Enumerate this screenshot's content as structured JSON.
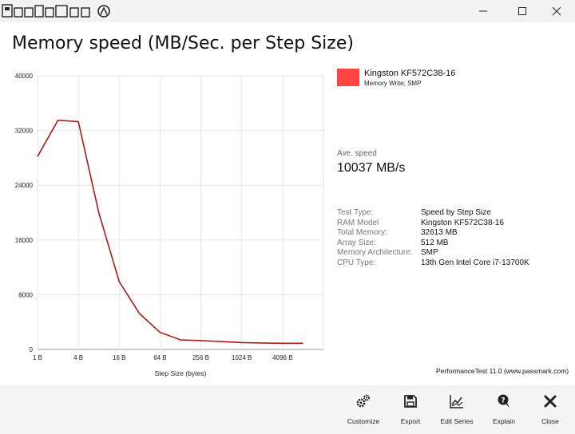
{
  "window": {
    "app_logo_icon": "passmark-logo-icon",
    "minimize_icon": "minimize-icon",
    "maximize_icon": "maximize-icon",
    "close_icon": "close-icon"
  },
  "page": {
    "title": "Memory speed (MB/Sec. per Step Size)"
  },
  "legend": {
    "color": "#ff4444",
    "name": "Kingston KF572C38-16",
    "subtitle": "Memory Write; SMP"
  },
  "summary": {
    "ave_label": "Ave. speed",
    "ave_value": "10037 MB/s"
  },
  "info": [
    {
      "key": "Test Type:",
      "value": "Speed by Step Size"
    },
    {
      "key": "RAM Model",
      "value": "Kingston KF572C38-16"
    },
    {
      "key": "Total Memory:",
      "value": "32613 MB"
    },
    {
      "key": "Array Size:",
      "value": "512 MB"
    },
    {
      "key": "Memory Architecture:",
      "value": "SMP"
    },
    {
      "key": "CPU Type:",
      "value": "13th Gen Intel Core i7-13700K"
    }
  ],
  "credit": "PerformanceTest 11.0 (www.passmark.com)",
  "toolbar": {
    "customize": "Customize",
    "export": "Export",
    "edit_series": "Edit Series",
    "explain": "Explain",
    "close": "Close"
  },
  "chart_data": {
    "type": "line",
    "title": "",
    "xlabel": "Step Size (bytes)",
    "ylabel": "",
    "x_scale": "log2",
    "x_ticks": [
      "1 B",
      "4 B",
      "16 B",
      "64 B",
      "256 B",
      "1024 B",
      "4096 B"
    ],
    "x_tick_values": [
      1,
      4,
      16,
      64,
      256,
      1024,
      4096
    ],
    "xlim": [
      1,
      16384
    ],
    "y_ticks": [
      0,
      8000,
      16000,
      24000,
      32000,
      40000
    ],
    "ylim": [
      0,
      40000
    ],
    "grid": true,
    "line_color": "#b01818",
    "series": [
      {
        "name": "Kingston KF572C38-16",
        "x": [
          1,
          2,
          4,
          8,
          16,
          32,
          64,
          128,
          256,
          512,
          1024,
          2048,
          4096,
          8192
        ],
        "y": [
          28200,
          33500,
          33300,
          20000,
          9900,
          5200,
          2500,
          1400,
          1300,
          1150,
          1000,
          950,
          900,
          900
        ]
      }
    ]
  }
}
